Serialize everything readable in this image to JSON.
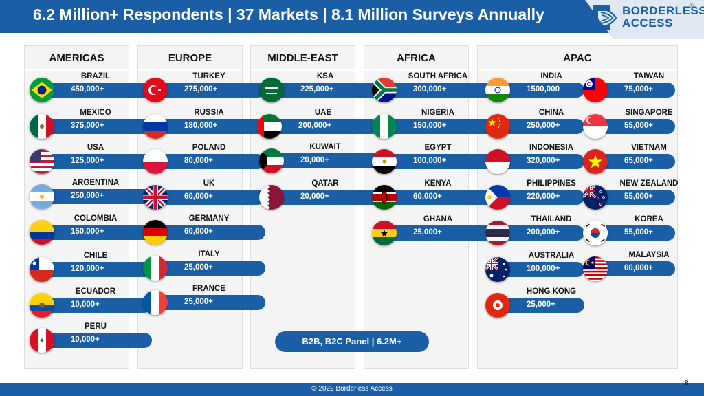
{
  "header": {
    "title": "6.2 Million+ Respondents | 37 Markets | 8.1 Million Surveys Annually"
  },
  "logo": {
    "line1": "BORDERLESS",
    "line2": "ACCESS",
    "registered": "®"
  },
  "regions": {
    "americas": {
      "title": "AMERICAS",
      "countries": [
        {
          "name": "BRAZIL",
          "value": "450,000+",
          "flag": "brazil-flag-icon"
        },
        {
          "name": "MEXICO",
          "value": "375,000+",
          "flag": "mexico-flag-icon"
        },
        {
          "name": "USA",
          "value": "125,000+",
          "flag": "usa-flag-icon"
        },
        {
          "name": "ARGENTINA",
          "value": "250,000+",
          "flag": "argentina-flag-icon"
        },
        {
          "name": "COLOMBIA",
          "value": "150,000+",
          "flag": "colombia-flag-icon"
        },
        {
          "name": "CHILE",
          "value": "120,000+",
          "flag": "chile-flag-icon"
        },
        {
          "name": "ECUADOR",
          "value": "10,000+",
          "flag": "ecuador-flag-icon"
        },
        {
          "name": "PERU",
          "value": "10,000+",
          "flag": "peru-flag-icon"
        }
      ]
    },
    "europe": {
      "title": "EUROPE",
      "countries": [
        {
          "name": "TURKEY",
          "value": "275,000+",
          "flag": "turkey-flag-icon"
        },
        {
          "name": "RUSSIA",
          "value": "180,000+",
          "flag": "russia-flag-icon"
        },
        {
          "name": "POLAND",
          "value": "80,000+",
          "flag": "poland-flag-icon"
        },
        {
          "name": "UK",
          "value": "60,000+",
          "flag": "uk-flag-icon"
        },
        {
          "name": "GERMANY",
          "value": "60,000+",
          "flag": "germany-flag-icon"
        },
        {
          "name": "ITALY",
          "value": "25,000+",
          "flag": "italy-flag-icon"
        },
        {
          "name": "FRANCE",
          "value": "25,000+",
          "flag": "france-flag-icon"
        }
      ]
    },
    "middle_east": {
      "title": "MIDDLE-EAST",
      "countries": [
        {
          "name": "KSA",
          "value": "225,000+",
          "flag": "ksa-flag-icon"
        },
        {
          "name": "UAE",
          "value": "200,000+",
          "flag": "uae-flag-icon"
        },
        {
          "name": "KUWAIT",
          "value": "20,000+",
          "flag": "kuwait-flag-icon"
        },
        {
          "name": "QATAR",
          "value": "20,000+",
          "flag": "qatar-flag-icon"
        }
      ]
    },
    "africa": {
      "title": "AFRICA",
      "countries": [
        {
          "name": "SOUTH AFRICA",
          "value": "300,000+",
          "flag": "south-africa-flag-icon"
        },
        {
          "name": "NIGERIA",
          "value": "150,000+",
          "flag": "nigeria-flag-icon"
        },
        {
          "name": "EGYPT",
          "value": "100,000+",
          "flag": "egypt-flag-icon"
        },
        {
          "name": "KENYA",
          "value": "60,000+",
          "flag": "kenya-flag-icon"
        },
        {
          "name": "GHANA",
          "value": "25,000+",
          "flag": "ghana-flag-icon"
        }
      ]
    },
    "apac": {
      "title": "APAC",
      "countries": [
        {
          "name": "INDIA",
          "value": "1500,000",
          "flag": "india-flag-icon"
        },
        {
          "name": "CHINA",
          "value": "250,000+",
          "flag": "china-flag-icon"
        },
        {
          "name": "INDONESIA",
          "value": "320,000+",
          "flag": "indonesia-flag-icon"
        },
        {
          "name": "PHILIPPINES",
          "value": "220,000+",
          "flag": "philippines-flag-icon"
        },
        {
          "name": "THAILAND",
          "value": "200,000+",
          "flag": "thailand-flag-icon"
        },
        {
          "name": "AUSTRALIA",
          "value": "100,000+",
          "flag": "australia-flag-icon"
        },
        {
          "name": "HONG KONG",
          "value": "25,000+",
          "flag": "hong-kong-flag-icon"
        },
        {
          "name": "TAIWAN",
          "value": "75,000+",
          "flag": "taiwan-flag-icon"
        },
        {
          "name": "SINGAPORE",
          "value": "55,000+",
          "flag": "singapore-flag-icon"
        },
        {
          "name": "VIETNAM",
          "value": "65,000+",
          "flag": "vietnam-flag-icon"
        },
        {
          "name": "NEW ZEALAND",
          "value": "55,000+",
          "flag": "new-zealand-flag-icon"
        },
        {
          "name": "KOREA",
          "value": "55,000+",
          "flag": "korea-flag-icon"
        },
        {
          "name": "MALAYSIA",
          "value": "60,000+",
          "flag": "malaysia-flag-icon"
        }
      ]
    }
  },
  "panel_badge": "B2B, B2C Panel | 6.2M+",
  "footer": {
    "copyright": "© 2022 Borderless Access",
    "page_number": "8"
  },
  "colors": {
    "brand_blue": "#1a5fa6",
    "panel_bg": "#f4f4f4"
  }
}
